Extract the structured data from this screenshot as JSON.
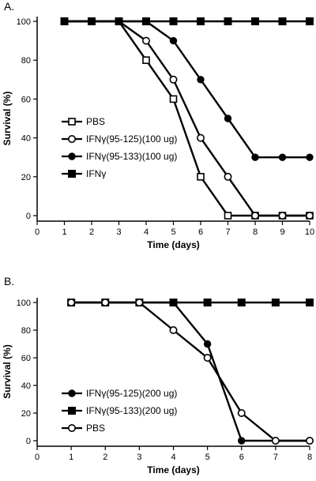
{
  "chart_data": [
    {
      "panel": "A.",
      "type": "line",
      "xlabel": "Time (days)",
      "ylabel": "Survival (%)",
      "xlim": [
        0,
        10
      ],
      "ylim": [
        0,
        100
      ],
      "xticks": [
        0,
        1,
        2,
        3,
        4,
        5,
        6,
        7,
        8,
        9,
        10
      ],
      "yticks": [
        0,
        20,
        40,
        60,
        80,
        100
      ],
      "legend_position": "bottom-left",
      "series": [
        {
          "name": "PBS",
          "marker": "open-square",
          "x": [
            1,
            2,
            3,
            4,
            5,
            6,
            7,
            8,
            9,
            10
          ],
          "y": [
            100,
            100,
            100,
            80,
            60,
            20,
            0,
            0,
            0,
            0
          ]
        },
        {
          "name": "IFNγ(95-125)(100 ug)",
          "marker": "open-circle",
          "x": [
            1,
            2,
            3,
            4,
            5,
            6,
            7,
            8,
            9,
            10
          ],
          "y": [
            100,
            100,
            100,
            90,
            70,
            40,
            20,
            0,
            0,
            0
          ]
        },
        {
          "name": "IFNγ(95-133)(100 ug)",
          "marker": "filled-circle",
          "x": [
            1,
            2,
            3,
            4,
            5,
            6,
            7,
            8,
            9,
            10
          ],
          "y": [
            100,
            100,
            100,
            100,
            90,
            70,
            50,
            30,
            30,
            30
          ]
        },
        {
          "name": "IFNγ",
          "marker": "filled-square",
          "x": [
            1,
            2,
            3,
            4,
            5,
            6,
            7,
            8,
            9,
            10
          ],
          "y": [
            100,
            100,
            100,
            100,
            100,
            100,
            100,
            100,
            100,
            100
          ]
        }
      ]
    },
    {
      "panel": "B.",
      "type": "line",
      "xlabel": "Time (days)",
      "ylabel": "Survival (%)",
      "xlim": [
        0,
        8
      ],
      "ylim": [
        0,
        100
      ],
      "xticks": [
        0,
        1,
        2,
        3,
        4,
        5,
        6,
        7,
        8
      ],
      "yticks": [
        0,
        20,
        40,
        60,
        80,
        100
      ],
      "legend_position": "bottom-left",
      "series": [
        {
          "name": "IFNγ(95-125)(200 ug)",
          "marker": "filled-circle",
          "x": [
            1,
            2,
            3,
            4,
            5,
            6,
            7,
            8
          ],
          "y": [
            100,
            100,
            100,
            100,
            70,
            0,
            0,
            0
          ]
        },
        {
          "name": "IFNγ(95-133)(200 ug)",
          "marker": "filled-square",
          "x": [
            1,
            2,
            3,
            4,
            5,
            6,
            7,
            8
          ],
          "y": [
            100,
            100,
            100,
            100,
            100,
            100,
            100,
            100
          ]
        },
        {
          "name": "PBS",
          "marker": "open-circle",
          "x": [
            1,
            2,
            3,
            4,
            5,
            6,
            7,
            8
          ],
          "y": [
            100,
            100,
            100,
            80,
            60,
            20,
            0,
            0
          ]
        }
      ]
    }
  ]
}
